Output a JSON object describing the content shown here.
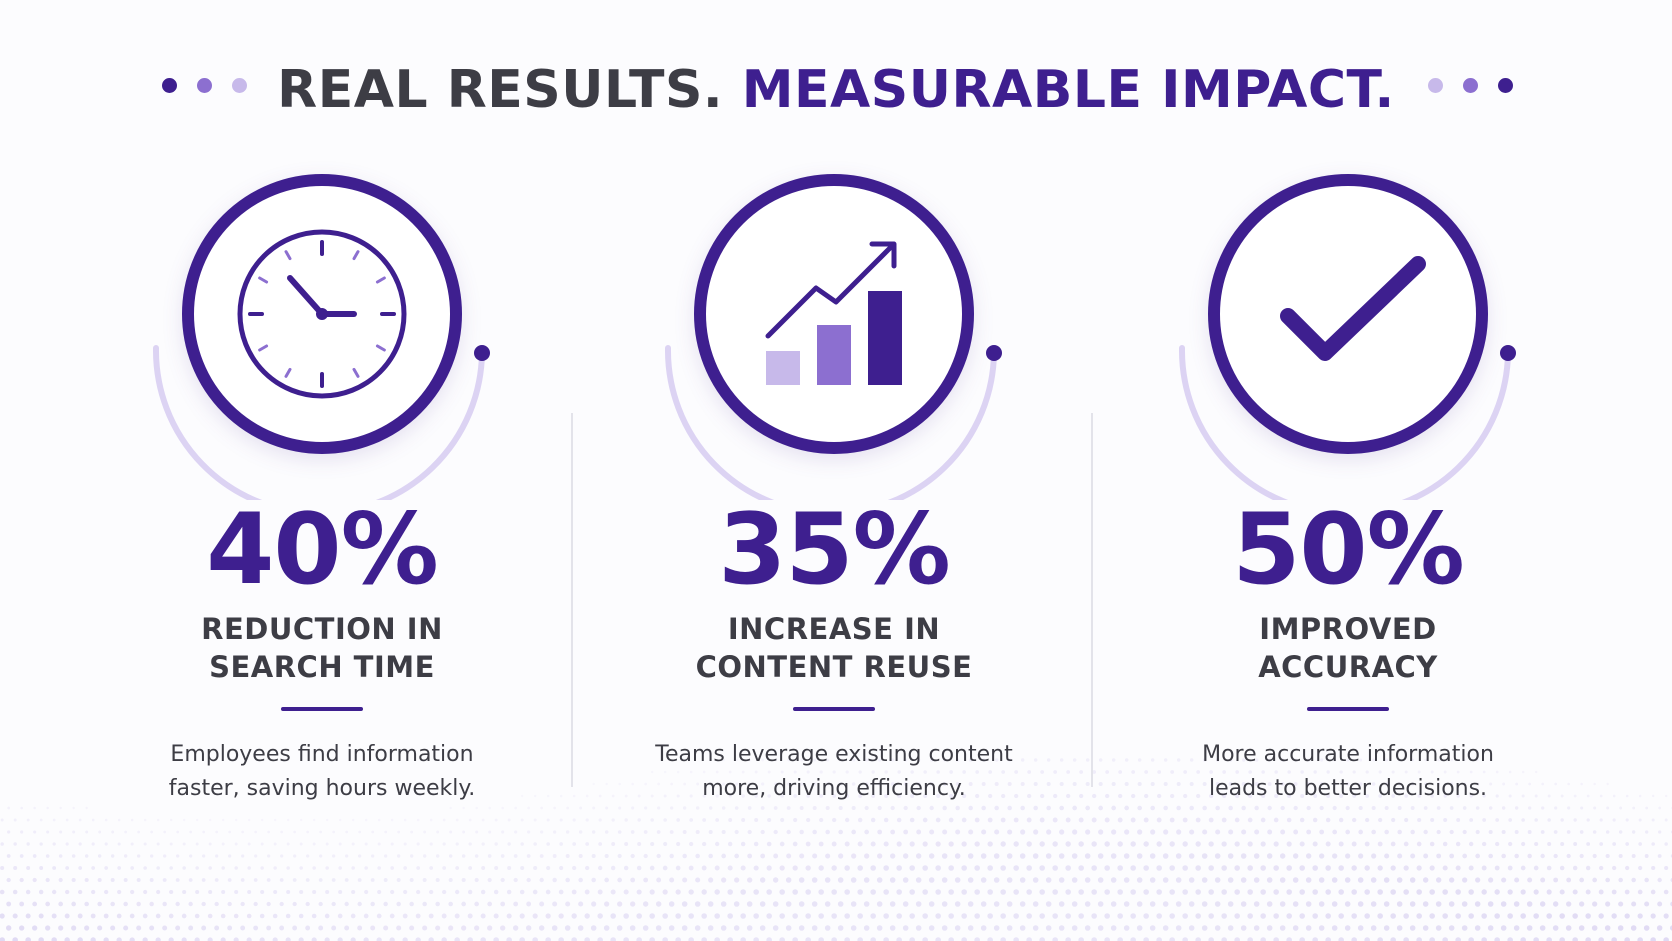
{
  "header": {
    "title_part1": "REAL RESULTS.",
    "title_part2": "MEASURABLE IMPACT."
  },
  "colors": {
    "primary": "#3e1f8f",
    "medium": "#8c6fd0",
    "light": "#c7b9ea",
    "arc": "#dcd3f3",
    "text": "#3d3d45"
  },
  "stats": [
    {
      "icon": "clock-icon",
      "value": "40%",
      "label_line1": "REDUCTION IN",
      "label_line2": "SEARCH TIME",
      "desc_line1": "Employees find information",
      "desc_line2": "faster, saving hours weekly."
    },
    {
      "icon": "growth-chart-icon",
      "value": "35%",
      "label_line1": "INCREASE IN",
      "label_line2": "CONTENT REUSE",
      "desc_line1": "Teams leverage existing content",
      "desc_line2": "more, driving efficiency."
    },
    {
      "icon": "checkmark-icon",
      "value": "50%",
      "label_line1": "IMPROVED",
      "label_line2": "ACCURACY",
      "desc_line1": "More accurate information",
      "desc_line2": "leads to better decisions."
    }
  ]
}
